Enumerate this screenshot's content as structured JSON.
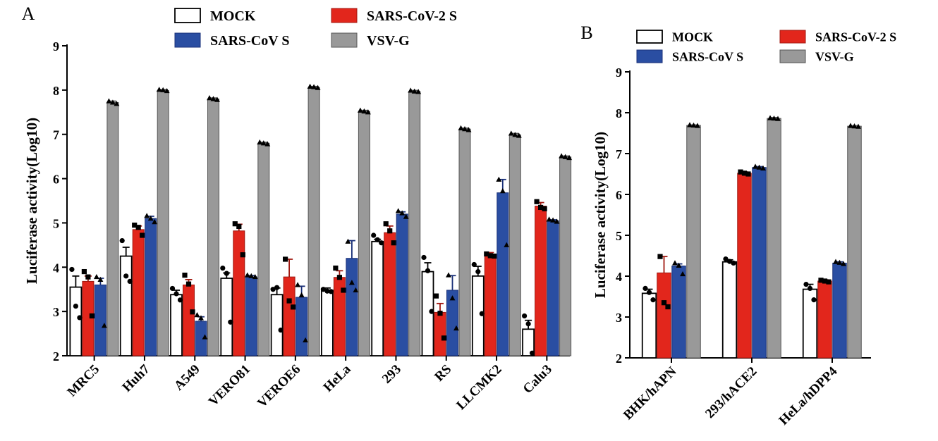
{
  "colors": {
    "mock": "#ffffff",
    "sars2": "#e2261c",
    "sars1": "#2a4ea2",
    "vsvg": "#999999",
    "sars2_dark": "#a01810",
    "sars1_dark": "#1a3078",
    "vsvg_dark": "#555555"
  },
  "chart_data": [
    {
      "panel": "A",
      "type": "bar",
      "ylabel": "Luciferase activity(Log10)",
      "ylim": [
        2,
        9
      ],
      "yticks": [
        "2",
        "3",
        "4",
        "5",
        "6",
        "7",
        "8",
        "9"
      ],
      "legend": [
        "MOCK",
        "SARS-CoV-2  S",
        "SARS-CoV S",
        "VSV-G"
      ],
      "legend_position": "top",
      "categories": [
        "MRC5",
        "Huh7",
        "A549",
        "VERO81",
        "VEROE6",
        "HeLa",
        "293",
        "RS",
        "LLCMK2",
        "Calu3"
      ],
      "series": [
        {
          "name": "MOCK",
          "color_key": "mock",
          "marker": "circle",
          "values": [
            3.55,
            4.25,
            3.38,
            3.75,
            3.38,
            3.48,
            4.58,
            3.9,
            3.8,
            2.6
          ],
          "errors": [
            0.25,
            0.2,
            0.1,
            0.12,
            0.15,
            0.05,
            0.05,
            0.2,
            0.22,
            0.2
          ],
          "points": [
            [
              3.95,
              3.12,
              2.86
            ],
            [
              4.6,
              3.8,
              3.68
            ],
            [
              3.52,
              3.4,
              3.26
            ],
            [
              3.98,
              3.86,
              2.76
            ],
            [
              3.5,
              3.54,
              2.58
            ],
            [
              3.5,
              3.46,
              3.45
            ],
            [
              4.72,
              4.62,
              4.55
            ],
            [
              4.22,
              3.92,
              3.0
            ],
            [
              4.06,
              3.9,
              2.95
            ],
            [
              2.9,
              2.72,
              2.06
            ]
          ]
        },
        {
          "name": "SARS-CoV-2  S",
          "color_key": "sars2",
          "marker": "square",
          "values": [
            3.68,
            4.85,
            3.6,
            4.82,
            3.78,
            3.77,
            4.78,
            2.98,
            4.28,
            5.38
          ],
          "errors": [
            0.12,
            0.08,
            0.12,
            0.15,
            0.4,
            0.15,
            0.15,
            0.2,
            0.05,
            0.08
          ],
          "points": [
            [
              3.9,
              3.78,
              2.9
            ],
            [
              4.95,
              4.9,
              4.72
            ],
            [
              3.82,
              3.62,
              2.99
            ],
            [
              4.98,
              4.92,
              4.28
            ],
            [
              4.18,
              3.24,
              3.1
            ],
            [
              3.98,
              3.77,
              3.48
            ],
            [
              4.98,
              4.82,
              4.55
            ],
            [
              3.35,
              2.96,
              2.4
            ],
            [
              4.3,
              4.26,
              4.25
            ],
            [
              5.48,
              5.35,
              5.32
            ]
          ]
        },
        {
          "name": "SARS-CoV S",
          "color_key": "sars1",
          "marker": "triangle",
          "values": [
            3.6,
            5.1,
            2.78,
            3.78,
            3.32,
            4.2,
            5.2,
            3.48,
            5.68,
            5.05
          ],
          "errors": [
            0.15,
            0.05,
            0.1,
            0.03,
            0.25,
            0.4,
            0.05,
            0.33,
            0.3,
            0.02
          ],
          "points": [
            [
              3.78,
              3.72,
              2.68
            ],
            [
              5.16,
              5.1,
              5.02
            ],
            [
              2.92,
              2.85,
              2.42
            ],
            [
              3.82,
              3.8,
              3.78
            ],
            [
              3.6,
              3.37,
              2.35
            ],
            [
              4.58,
              3.65,
              3.48
            ],
            [
              5.27,
              5.22,
              5.14
            ],
            [
              3.82,
              3.3,
              2.62
            ],
            [
              5.98,
              5.72,
              4.5
            ],
            [
              5.08,
              5.06,
              5.03
            ]
          ]
        },
        {
          "name": "VSV-G",
          "color_key": "vsvg",
          "marker": "triangle",
          "values": [
            7.72,
            7.99,
            7.8,
            6.8,
            8.06,
            7.52,
            7.97,
            7.12,
            6.99,
            6.49
          ],
          "errors": [
            0.03,
            0.02,
            0.02,
            0.02,
            0.02,
            0.02,
            0.02,
            0.02,
            0.03,
            0.02
          ],
          "points": [
            [
              7.75,
              7.72,
              7.69
            ],
            [
              8.01,
              8.0,
              7.98
            ],
            [
              7.82,
              7.8,
              7.78
            ],
            [
              6.82,
              6.8,
              6.78
            ],
            [
              8.08,
              8.07,
              8.05
            ],
            [
              7.54,
              7.52,
              7.5
            ],
            [
              7.99,
              7.97,
              7.96
            ],
            [
              7.14,
              7.12,
              7.1
            ],
            [
              7.02,
              6.99,
              6.97
            ],
            [
              6.51,
              6.49,
              6.47
            ]
          ]
        }
      ]
    },
    {
      "panel": "B",
      "type": "bar",
      "ylabel": "Luciferase activity(Log10)",
      "ylim": [
        2,
        9
      ],
      "yticks": [
        "2",
        "3",
        "4",
        "5",
        "6",
        "7",
        "8",
        "9"
      ],
      "legend": [
        "MOCK",
        "SARS-CoV-2  S",
        "SARS-CoV S",
        "VSV-G"
      ],
      "legend_position": "top",
      "categories": [
        "BHK/hAPN",
        "293/hACE2",
        "HeLa/hDPP4"
      ],
      "series": [
        {
          "name": "MOCK",
          "color_key": "mock",
          "marker": "circle",
          "values": [
            3.58,
            4.35,
            3.68
          ],
          "errors": [
            0.1,
            0.05,
            0.12
          ],
          "points": [
            [
              3.7,
              3.6,
              3.42
            ],
            [
              4.42,
              4.36,
              4.32
            ],
            [
              3.8,
              3.7,
              3.42
            ]
          ]
        },
        {
          "name": "SARS-CoV-2  S",
          "color_key": "sars2",
          "marker": "square",
          "values": [
            4.08,
            6.52,
            3.88
          ],
          "errors": [
            0.4,
            0.03,
            0.03
          ],
          "points": [
            [
              4.48,
              3.35,
              3.25
            ],
            [
              6.55,
              6.52,
              6.5
            ],
            [
              3.9,
              3.88,
              3.86
            ]
          ]
        },
        {
          "name": "SARS-CoV S",
          "color_key": "sars1",
          "marker": "triangle",
          "values": [
            4.25,
            6.66,
            4.32
          ],
          "errors": [
            0.05,
            0.02,
            0.03
          ],
          "points": [
            [
              4.32,
              4.26,
              4.05
            ],
            [
              6.68,
              6.66,
              6.64
            ],
            [
              4.35,
              4.33,
              4.3
            ]
          ]
        },
        {
          "name": "VSV-G",
          "color_key": "vsvg",
          "marker": "triangle",
          "values": [
            7.69,
            7.86,
            7.67
          ],
          "errors": [
            0.01,
            0.02,
            0.01
          ],
          "points": [
            [
              7.7,
              7.69,
              7.68
            ],
            [
              7.87,
              7.86,
              7.85
            ],
            [
              7.68,
              7.67,
              7.66
            ]
          ]
        }
      ]
    }
  ]
}
